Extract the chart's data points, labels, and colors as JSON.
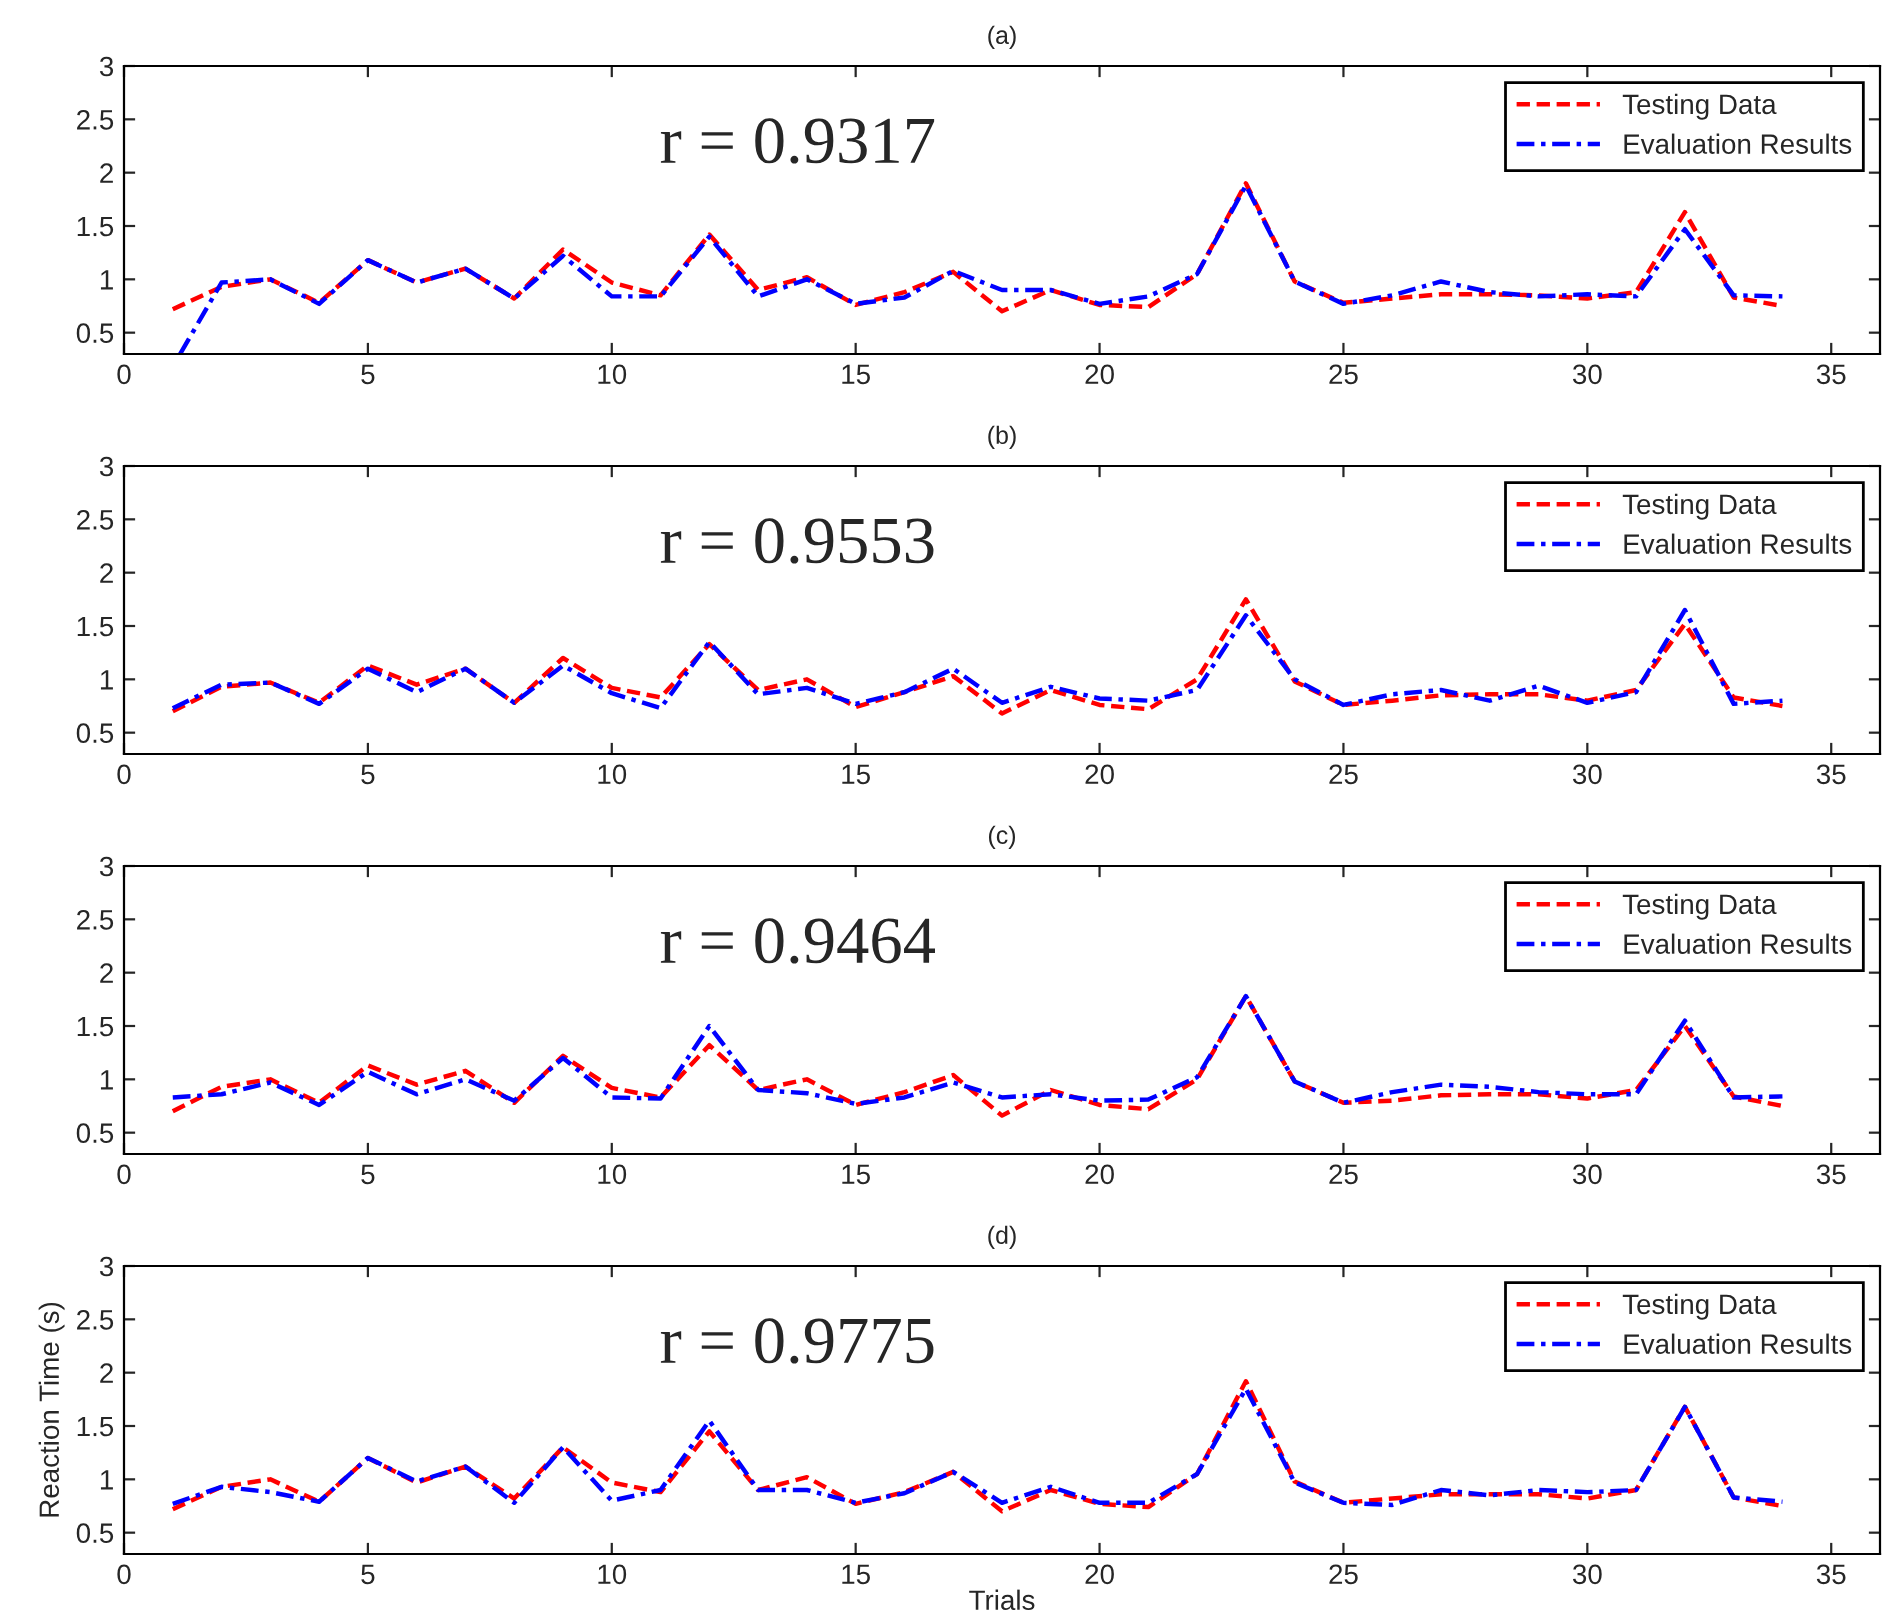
{
  "chart_data": [
    {
      "type": "line",
      "title": "(a)",
      "x": [
        1,
        2,
        3,
        4,
        5,
        6,
        7,
        8,
        9,
        10,
        11,
        12,
        13,
        14,
        15,
        16,
        17,
        18,
        19,
        20,
        21,
        22,
        23,
        24,
        25,
        26,
        27,
        28,
        29,
        30,
        31,
        32,
        33,
        34
      ],
      "xlim": [
        0,
        36
      ],
      "xticks": [
        0,
        5,
        10,
        15,
        20,
        25,
        30,
        35
      ],
      "ylim": [
        0.3,
        3
      ],
      "yticks": [
        0.5,
        1,
        1.5,
        2,
        2.5,
        3
      ],
      "legend": "top right",
      "grid": false,
      "annotations": [
        "r = 0.9317"
      ],
      "series": [
        {
          "name": "Testing Data",
          "color": "#ff0000",
          "line_style": "dashed",
          "values": [
            0.72,
            0.93,
            1.0,
            0.78,
            1.18,
            0.97,
            1.1,
            0.82,
            1.28,
            0.97,
            0.85,
            1.42,
            0.9,
            1.02,
            0.76,
            0.88,
            1.07,
            0.7,
            0.9,
            0.76,
            0.74,
            1.05,
            1.9,
            0.98,
            0.78,
            0.82,
            0.86,
            0.86,
            0.85,
            0.82,
            0.88,
            1.63,
            0.83,
            0.75
          ]
        },
        {
          "name": "Evaluation Results",
          "color": "#0000ff",
          "line_style": "dashdot",
          "x": [
            1.15,
            2,
            3,
            4,
            5,
            6,
            7,
            8,
            9,
            10,
            11,
            12,
            13,
            14,
            15,
            16,
            17,
            18,
            19,
            20,
            21,
            22,
            23,
            24,
            25,
            26,
            27,
            28,
            29,
            30,
            31,
            32,
            33,
            34
          ],
          "values": [
            0.3,
            0.97,
            1.0,
            0.77,
            1.18,
            0.97,
            1.1,
            0.82,
            1.22,
            0.84,
            0.84,
            1.4,
            0.84,
            1.0,
            0.77,
            0.83,
            1.08,
            0.9,
            0.9,
            0.77,
            0.84,
            1.05,
            1.88,
            0.98,
            0.77,
            0.85,
            0.98,
            0.88,
            0.84,
            0.86,
            0.84,
            1.47,
            0.85,
            0.84
          ]
        }
      ]
    },
    {
      "type": "line",
      "title": "(b)",
      "x": [
        1,
        2,
        3,
        4,
        5,
        6,
        7,
        8,
        9,
        10,
        11,
        12,
        13,
        14,
        15,
        16,
        17,
        18,
        19,
        20,
        21,
        22,
        23,
        24,
        25,
        26,
        27,
        28,
        29,
        30,
        31,
        32,
        33,
        34
      ],
      "xlim": [
        0,
        36
      ],
      "xticks": [
        0,
        5,
        10,
        15,
        20,
        25,
        30,
        35
      ],
      "ylim": [
        0.3,
        3
      ],
      "yticks": [
        0.5,
        1,
        1.5,
        2,
        2.5,
        3
      ],
      "legend": "top right",
      "grid": false,
      "annotations": [
        "r = 0.9553"
      ],
      "series": [
        {
          "name": "Testing Data",
          "color": "#ff0000",
          "line_style": "dashed",
          "values": [
            0.7,
            0.93,
            0.97,
            0.78,
            1.13,
            0.95,
            1.1,
            0.78,
            1.2,
            0.92,
            0.83,
            1.33,
            0.9,
            1.0,
            0.74,
            0.88,
            1.03,
            0.68,
            0.9,
            0.76,
            0.72,
            1.0,
            1.75,
            0.98,
            0.76,
            0.8,
            0.85,
            0.86,
            0.86,
            0.8,
            0.9,
            1.52,
            0.83,
            0.75
          ]
        },
        {
          "name": "Evaluation Results",
          "color": "#0000ff",
          "line_style": "dashdot",
          "values": [
            0.73,
            0.95,
            0.97,
            0.77,
            1.1,
            0.88,
            1.1,
            0.78,
            1.13,
            0.87,
            0.73,
            1.35,
            0.86,
            0.92,
            0.77,
            0.88,
            1.1,
            0.78,
            0.93,
            0.82,
            0.8,
            0.9,
            1.6,
            1.0,
            0.76,
            0.86,
            0.9,
            0.8,
            0.94,
            0.78,
            0.88,
            1.65,
            0.77,
            0.8
          ]
        }
      ]
    },
    {
      "type": "line",
      "title": "(c)",
      "x": [
        1,
        2,
        3,
        4,
        5,
        6,
        7,
        8,
        9,
        10,
        11,
        12,
        13,
        14,
        15,
        16,
        17,
        18,
        19,
        20,
        21,
        22,
        23,
        24,
        25,
        26,
        27,
        28,
        29,
        30,
        31,
        32,
        33,
        34
      ],
      "xlim": [
        0,
        36
      ],
      "xticks": [
        0,
        5,
        10,
        15,
        20,
        25,
        30,
        35
      ],
      "ylim": [
        0.3,
        3
      ],
      "yticks": [
        0.5,
        1,
        1.5,
        2,
        2.5,
        3
      ],
      "legend": "top right",
      "grid": false,
      "annotations": [
        "r = 0.9464"
      ],
      "series": [
        {
          "name": "Testing Data",
          "color": "#ff0000",
          "line_style": "dashed",
          "values": [
            0.7,
            0.93,
            1.0,
            0.78,
            1.13,
            0.95,
            1.08,
            0.78,
            1.22,
            0.92,
            0.83,
            1.32,
            0.9,
            1.0,
            0.76,
            0.88,
            1.04,
            0.66,
            0.9,
            0.76,
            0.72,
            1.0,
            1.78,
            0.98,
            0.78,
            0.8,
            0.85,
            0.86,
            0.86,
            0.82,
            0.9,
            1.5,
            0.84,
            0.75
          ]
        },
        {
          "name": "Evaluation Results",
          "color": "#0000ff",
          "line_style": "dashdot",
          "values": [
            0.83,
            0.86,
            0.97,
            0.76,
            1.07,
            0.86,
            1.0,
            0.8,
            1.2,
            0.83,
            0.82,
            1.5,
            0.9,
            0.87,
            0.77,
            0.83,
            0.97,
            0.83,
            0.86,
            0.8,
            0.81,
            1.02,
            1.78,
            0.98,
            0.78,
            0.88,
            0.95,
            0.93,
            0.88,
            0.86,
            0.86,
            1.55,
            0.83,
            0.84
          ]
        }
      ]
    },
    {
      "type": "line",
      "title": "(d)",
      "xlabel": "Trials",
      "ylabel": "Reaction Time (s)",
      "x": [
        1,
        2,
        3,
        4,
        5,
        6,
        7,
        8,
        9,
        10,
        11,
        12,
        13,
        14,
        15,
        16,
        17,
        18,
        19,
        20,
        21,
        22,
        23,
        24,
        25,
        26,
        27,
        28,
        29,
        30,
        31,
        32,
        33,
        34
      ],
      "xlim": [
        0,
        36
      ],
      "xticks": [
        0,
        5,
        10,
        15,
        20,
        25,
        30,
        35
      ],
      "ylim": [
        0.3,
        3
      ],
      "yticks": [
        0.5,
        1,
        1.5,
        2,
        2.5,
        3
      ],
      "legend": "top right",
      "grid": false,
      "annotations": [
        "r = 0.9775"
      ],
      "series": [
        {
          "name": "Testing Data",
          "color": "#ff0000",
          "line_style": "dashed",
          "values": [
            0.72,
            0.93,
            1.0,
            0.79,
            1.2,
            0.97,
            1.12,
            0.82,
            1.3,
            0.97,
            0.88,
            1.45,
            0.9,
            1.02,
            0.77,
            0.88,
            1.07,
            0.7,
            0.9,
            0.77,
            0.74,
            1.05,
            1.92,
            0.98,
            0.78,
            0.82,
            0.86,
            0.86,
            0.86,
            0.82,
            0.9,
            1.68,
            0.83,
            0.75
          ]
        },
        {
          "name": "Evaluation Results",
          "color": "#0000ff",
          "line_style": "dashdot",
          "values": [
            0.77,
            0.93,
            0.88,
            0.79,
            1.2,
            0.98,
            1.12,
            0.78,
            1.3,
            0.8,
            0.9,
            1.55,
            0.9,
            0.9,
            0.78,
            0.87,
            1.07,
            0.78,
            0.93,
            0.78,
            0.78,
            1.05,
            1.85,
            0.97,
            0.78,
            0.76,
            0.9,
            0.85,
            0.9,
            0.88,
            0.9,
            1.68,
            0.83,
            0.79
          ]
        }
      ]
    }
  ]
}
